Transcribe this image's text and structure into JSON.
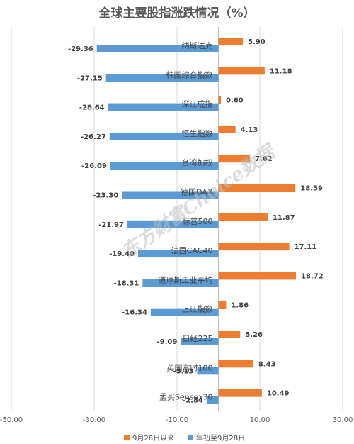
{
  "chart_data": {
    "type": "bar",
    "orientation": "horizontal",
    "title": "全球主要股指涨跌情况（%）",
    "categories": [
      "纳斯达克",
      "韩国综合指数",
      "深证成指",
      "恒生指数",
      "台湾加权",
      "德国DAX",
      "标普500",
      "法国CAC40",
      "道琼斯工业平均",
      "上证指数",
      "日经225",
      "英国富时100",
      "孟买Sensex30"
    ],
    "series": [
      {
        "name": "9月28日以来",
        "color": "#ED7D31",
        "values": [
          5.9,
          11.18,
          0.6,
          4.13,
          7.62,
          18.59,
          11.87,
          17.11,
          18.72,
          1.86,
          5.26,
          8.43,
          10.49
        ]
      },
      {
        "name": "年初至9月28日",
        "color": "#5B9BD5",
        "values": [
          -29.36,
          -27.15,
          -26.64,
          -26.27,
          -26.09,
          -23.3,
          -21.97,
          -19.4,
          -18.31,
          -16.34,
          -9.09,
          -5.13,
          -2.84
        ]
      }
    ],
    "xlim": [
      -50,
      30
    ],
    "xticks": [
      "-50.00",
      "-30.00",
      "-10.00",
      "10.00",
      "30.00"
    ],
    "xtick_values": [
      -50,
      -30,
      -10,
      10,
      30
    ],
    "grid": true,
    "legend_position": "bottom"
  },
  "watermark": "东方财富Choice数据"
}
